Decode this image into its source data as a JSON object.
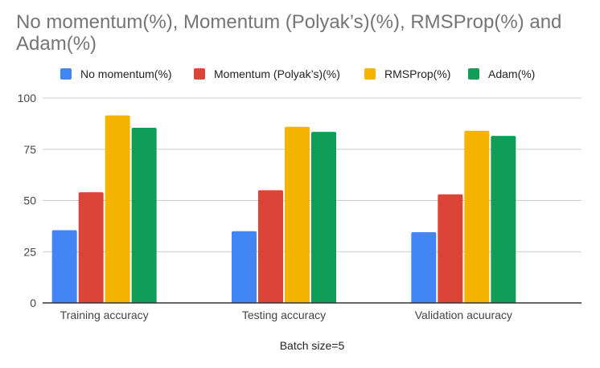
{
  "chart_data": {
    "type": "bar",
    "title": "No momentum(%), Momentum (Polyak’s)(%), RMSProp(%) and Adam(%)",
    "xlabel": "Batch size=5",
    "ylabel": "",
    "ylim": [
      0,
      100
    ],
    "yticks": [
      0,
      25,
      50,
      75,
      100
    ],
    "grid": true,
    "legend_position": "top",
    "categories": [
      "Training accuracy",
      "Testing accuracy",
      "Validation acuuracy"
    ],
    "series": [
      {
        "name": "No momentum(%)",
        "color": "#4285f4",
        "values": [
          35.5,
          35,
          34.5
        ]
      },
      {
        "name": "Momentum (Polyak’s)(%)",
        "color": "#db4437",
        "values": [
          54,
          55,
          53
        ]
      },
      {
        "name": "RMSProp(%)",
        "color": "#f4b400",
        "values": [
          91.5,
          86,
          84
        ]
      },
      {
        "name": "Adam(%)",
        "color": "#0f9d58",
        "values": [
          85.5,
          83.5,
          81.5
        ]
      }
    ]
  }
}
